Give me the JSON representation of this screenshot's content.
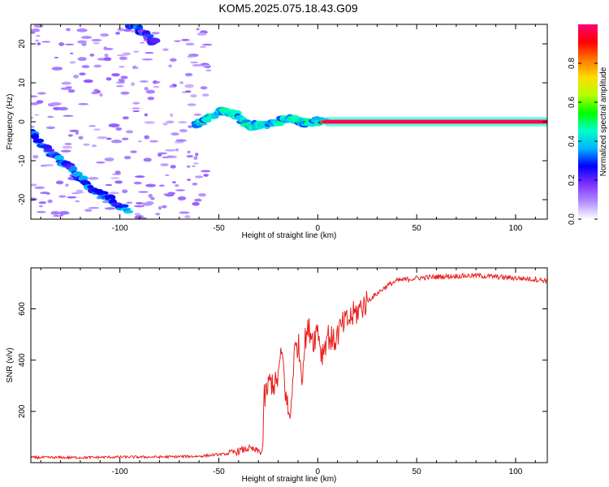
{
  "title": "KOM5.2025.075.18.43.G09",
  "chart_data": [
    {
      "type": "heatmap",
      "xlabel": "Height of straight line (km)",
      "ylabel": "Frequency (Hz)",
      "xlim": [
        -145,
        116
      ],
      "ylim": [
        -25,
        25
      ],
      "xticks": [
        -100,
        -50,
        0,
        50,
        100
      ],
      "yticks": [
        -20,
        -10,
        0,
        10,
        20
      ],
      "colorbar": {
        "label": "Normalized spectral amplitude",
        "range": [
          0,
          1
        ],
        "ticks": [
          "0.0",
          "0.2",
          "0.4",
          "0.6",
          "0.8"
        ],
        "colors": [
          "#ffffff",
          "#b18cff",
          "#7b2fff",
          "#0000ff",
          "#00b4ff",
          "#00ffc8",
          "#00ff00",
          "#b4ff00",
          "#ffdc00",
          "#ff7800",
          "#ff0000",
          "#ff0078"
        ]
      },
      "ridges": [
        {
          "name": "descending branch",
          "x": [
            -145,
            -135,
            -125,
            -115,
            -105,
            -95
          ],
          "y": [
            -3,
            -8,
            -12,
            -17,
            -20,
            -23
          ],
          "amplitude": 0.2
        },
        {
          "name": "upper branch",
          "x": [
            -95,
            -88,
            -82
          ],
          "y": [
            25,
            23,
            20
          ],
          "amplitude": 0.15
        },
        {
          "name": "disturbed segment",
          "x": [
            -62,
            -55,
            -48,
            -42,
            -35,
            -28,
            -20,
            -14,
            -8,
            -2,
            4
          ],
          "y": [
            -1,
            1,
            3,
            2,
            -1,
            -1,
            0,
            1,
            0,
            0,
            0
          ],
          "amplitude": 0.3
        },
        {
          "name": "main line",
          "x": [
            4,
            20,
            40,
            60,
            80,
            100,
            116
          ],
          "y": [
            0,
            0,
            0,
            0,
            0,
            0,
            0
          ],
          "amplitude": 0.95
        }
      ]
    },
    {
      "type": "line",
      "xlabel": "Height of straight line (km)",
      "ylabel": "SNR (v/v)",
      "xlim": [
        -145,
        116
      ],
      "ylim": [
        0,
        760
      ],
      "xticks": [
        -100,
        -50,
        0,
        50,
        100
      ],
      "yticks": [
        200,
        400,
        600
      ],
      "series": [
        {
          "color": "#e8201e",
          "x": [
            -145,
            -120,
            -100,
            -80,
            -60,
            -45,
            -35,
            -28,
            -27,
            -24,
            -21,
            -18,
            -16,
            -14,
            -12,
            -10,
            -8,
            -6,
            -4,
            -2,
            0,
            2,
            5,
            8,
            12,
            16,
            20,
            25,
            30,
            35,
            40,
            50,
            60,
            70,
            80,
            90,
            100,
            110,
            116
          ],
          "y": [
            20,
            20,
            22,
            22,
            25,
            35,
            55,
            40,
            250,
            320,
            300,
            430,
            250,
            160,
            420,
            470,
            350,
            500,
            520,
            480,
            530,
            420,
            500,
            470,
            530,
            560,
            590,
            630,
            660,
            690,
            710,
            720,
            725,
            728,
            730,
            725,
            720,
            715,
            710
          ]
        }
      ]
    }
  ]
}
